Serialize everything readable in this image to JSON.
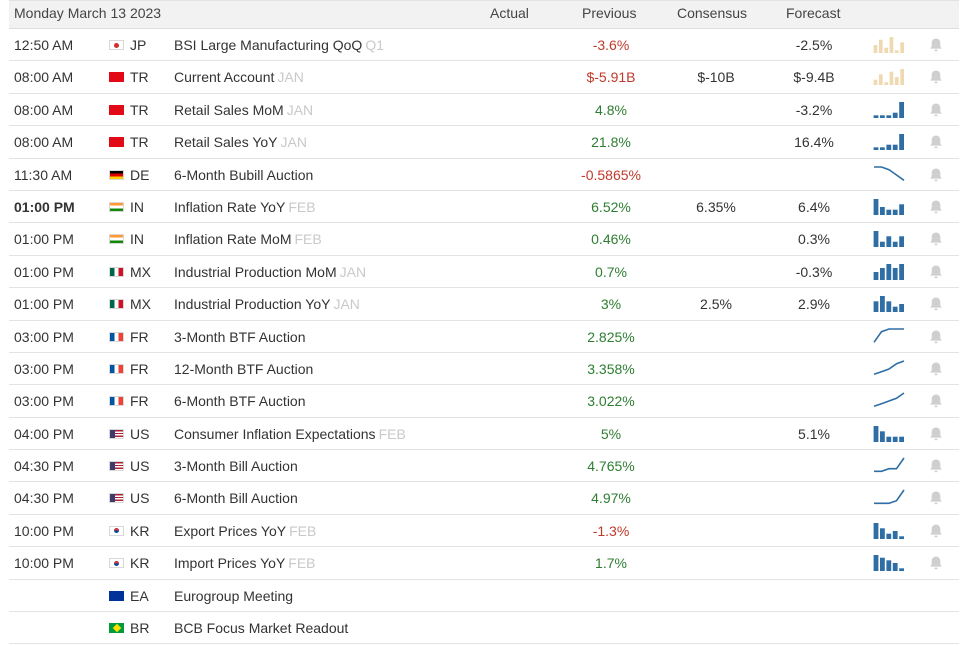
{
  "header": {
    "date": "Monday March 13 2023",
    "col_actual": "Actual",
    "col_previous": "Previous",
    "col_consensus": "Consensus",
    "col_forecast": "Forecast"
  },
  "colors": {
    "negative": "#c0392b",
    "positive": "#2e7d32",
    "spark_blue": "#2f6ea5",
    "spark_tan": "#efd9b0",
    "bell": "#cfcfcf"
  },
  "rows": [
    {
      "time": "12:50 AM",
      "bold": false,
      "flag": "JP",
      "country": "JP",
      "event": "BSI Large Manufacturing QoQ",
      "ref": "Q1",
      "actual": "",
      "previous": "-3.6%",
      "prev_tone": "neg",
      "consensus": "",
      "forecast": "-2.5%",
      "spark": "bars-tan",
      "spark_values": [
        3,
        5,
        2,
        6,
        1,
        4
      ]
    },
    {
      "time": "08:00 AM",
      "bold": false,
      "flag": "TR",
      "country": "TR",
      "event": "Current Account",
      "ref": "JAN",
      "actual": "",
      "previous": "$-5.91B",
      "prev_tone": "neg",
      "consensus": "$-10B",
      "forecast": "$-9.4B",
      "spark": "bars-tan",
      "spark_values": [
        2,
        4,
        1,
        5,
        3,
        6
      ]
    },
    {
      "time": "08:00 AM",
      "bold": false,
      "flag": "TR",
      "country": "TR",
      "event": "Retail Sales MoM",
      "ref": "JAN",
      "actual": "",
      "previous": "4.8%",
      "prev_tone": "pos",
      "consensus": "",
      "forecast": "-3.2%",
      "spark": "bars-blue",
      "spark_values": [
        1,
        1,
        1,
        2,
        6
      ]
    },
    {
      "time": "08:00 AM",
      "bold": false,
      "flag": "TR",
      "country": "TR",
      "event": "Retail Sales YoY",
      "ref": "JAN",
      "actual": "",
      "previous": "21.8%",
      "prev_tone": "pos",
      "consensus": "",
      "forecast": "16.4%",
      "spark": "bars-blue",
      "spark_values": [
        1,
        1,
        2,
        2,
        6
      ]
    },
    {
      "time": "11:30 AM",
      "bold": false,
      "flag": "DE",
      "country": "DE",
      "event": "6-Month Bubill Auction",
      "ref": "",
      "actual": "",
      "previous": "-0.5865%",
      "prev_tone": "neg",
      "consensus": "",
      "forecast": "",
      "spark": "line",
      "spark_values": [
        6,
        6,
        5,
        3,
        1
      ]
    },
    {
      "time": "01:00 PM",
      "bold": true,
      "flag": "IN",
      "country": "IN",
      "event": "Inflation Rate YoY",
      "ref": "FEB",
      "actual": "",
      "previous": "6.52%",
      "prev_tone": "pos",
      "consensus": "6.35%",
      "forecast": "6.4%",
      "spark": "bars-blue",
      "spark_values": [
        6,
        3,
        2,
        2,
        4
      ]
    },
    {
      "time": "01:00 PM",
      "bold": false,
      "flag": "IN",
      "country": "IN",
      "event": "Inflation Rate MoM",
      "ref": "FEB",
      "actual": "",
      "previous": "0.46%",
      "prev_tone": "pos",
      "consensus": "",
      "forecast": "0.3%",
      "spark": "bars-blue",
      "spark_values": [
        3,
        1,
        2,
        1,
        2
      ]
    },
    {
      "time": "01:00 PM",
      "bold": false,
      "flag": "MX",
      "country": "MX",
      "event": "Industrial Production MoM",
      "ref": "JAN",
      "actual": "",
      "previous": "0.7%",
      "prev_tone": "pos",
      "consensus": "",
      "forecast": "-0.3%",
      "spark": "bars-blue",
      "spark_values": [
        2,
        3,
        4,
        3,
        4
      ]
    },
    {
      "time": "01:00 PM",
      "bold": false,
      "flag": "MX",
      "country": "MX",
      "event": "Industrial Production YoY",
      "ref": "JAN",
      "actual": "",
      "previous": "3%",
      "prev_tone": "pos",
      "consensus": "2.5%",
      "forecast": "2.9%",
      "spark": "bars-blue",
      "spark_values": [
        4,
        6,
        4,
        2,
        3
      ]
    },
    {
      "time": "03:00 PM",
      "bold": false,
      "flag": "FR",
      "country": "FR",
      "event": "3-Month BTF Auction",
      "ref": "",
      "actual": "",
      "previous": "2.825%",
      "prev_tone": "pos",
      "consensus": "",
      "forecast": "",
      "spark": "line",
      "spark_values": [
        1,
        5,
        6,
        6,
        6
      ]
    },
    {
      "time": "03:00 PM",
      "bold": false,
      "flag": "FR",
      "country": "FR",
      "event": "12-Month BTF Auction",
      "ref": "",
      "actual": "",
      "previous": "3.358%",
      "prev_tone": "pos",
      "consensus": "",
      "forecast": "",
      "spark": "line",
      "spark_values": [
        1,
        2,
        3,
        5,
        6
      ]
    },
    {
      "time": "03:00 PM",
      "bold": false,
      "flag": "FR",
      "country": "FR",
      "event": "6-Month BTF Auction",
      "ref": "",
      "actual": "",
      "previous": "3.022%",
      "prev_tone": "pos",
      "consensus": "",
      "forecast": "",
      "spark": "line",
      "spark_values": [
        1,
        2,
        3,
        4,
        6
      ]
    },
    {
      "time": "04:00 PM",
      "bold": false,
      "flag": "US",
      "country": "US",
      "event": "Consumer Inflation Expectations",
      "ref": "FEB",
      "actual": "",
      "previous": "5%",
      "prev_tone": "pos",
      "consensus": "",
      "forecast": "5.1%",
      "spark": "bars-blue",
      "spark_values": [
        6,
        4,
        2,
        2,
        2
      ]
    },
    {
      "time": "04:30 PM",
      "bold": false,
      "flag": "US",
      "country": "US",
      "event": "3-Month Bill Auction",
      "ref": "",
      "actual": "",
      "previous": "4.765%",
      "prev_tone": "pos",
      "consensus": "",
      "forecast": "",
      "spark": "line",
      "spark_values": [
        1,
        1,
        2,
        2,
        6
      ]
    },
    {
      "time": "04:30 PM",
      "bold": false,
      "flag": "US",
      "country": "US",
      "event": "6-Month Bill Auction",
      "ref": "",
      "actual": "",
      "previous": "4.97%",
      "prev_tone": "pos",
      "consensus": "",
      "forecast": "",
      "spark": "line",
      "spark_values": [
        1,
        1,
        1,
        2,
        6
      ]
    },
    {
      "time": "10:00 PM",
      "bold": false,
      "flag": "KR",
      "country": "KR",
      "event": "Export Prices YoY",
      "ref": "FEB",
      "actual": "",
      "previous": "-1.3%",
      "prev_tone": "neg",
      "consensus": "",
      "forecast": "",
      "spark": "bars-blue",
      "spark_values": [
        6,
        4,
        2,
        3,
        1
      ]
    },
    {
      "time": "10:00 PM",
      "bold": false,
      "flag": "KR",
      "country": "KR",
      "event": "Import Prices YoY",
      "ref": "FEB",
      "actual": "",
      "previous": "1.7%",
      "prev_tone": "pos",
      "consensus": "",
      "forecast": "",
      "spark": "bars-blue",
      "spark_values": [
        6,
        5,
        4,
        3,
        1
      ]
    },
    {
      "time": "",
      "bold": false,
      "flag": "EA",
      "country": "EA",
      "event": "Eurogroup Meeting",
      "ref": "",
      "actual": "",
      "previous": "",
      "prev_tone": "neu",
      "consensus": "",
      "forecast": "",
      "spark": "none",
      "spark_values": []
    },
    {
      "time": "",
      "bold": false,
      "flag": "BR",
      "country": "BR",
      "event": "BCB Focus Market Readout",
      "ref": "",
      "actual": "",
      "previous": "",
      "prev_tone": "neu",
      "consensus": "",
      "forecast": "",
      "spark": "none",
      "spark_values": []
    }
  ]
}
